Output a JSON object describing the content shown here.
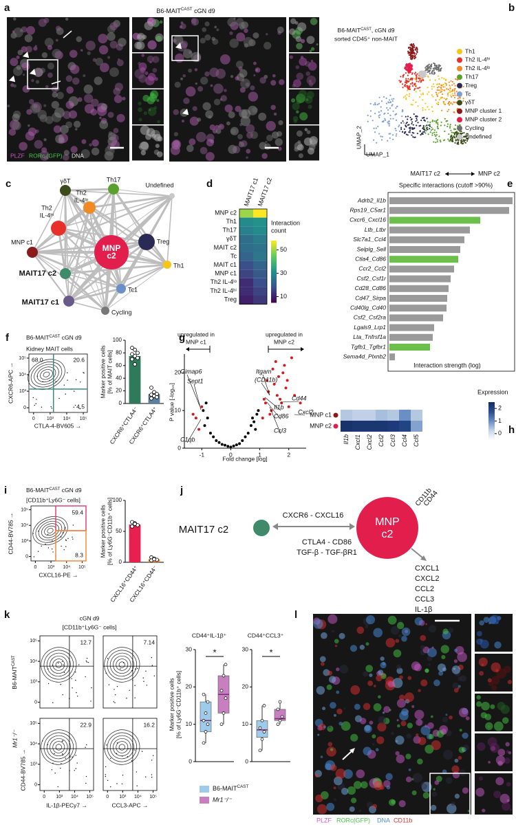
{
  "panel_labels": [
    "a",
    "b",
    "c",
    "d",
    "e",
    "f",
    "g",
    "h",
    "i",
    "j",
    "k",
    "l"
  ],
  "a": {
    "title": [
      "B6-MAIT",
      {
        "sup": "CAST"
      },
      " cGN d9"
    ],
    "legend": [
      "PLZF",
      "RORc (GFP)",
      "DNA"
    ],
    "legend_colors": [
      "#c85ac8",
      "#46c846",
      "#e6e6e6"
    ]
  },
  "b": {
    "title": [
      "B6-MAIT",
      {
        "sup": "CAST"
      },
      ", cGN d9"
    ],
    "subtitle": "sorted CD45⁺ non-MAIT",
    "x_label": "UMAP_1",
    "y_label": "UMAP_2",
    "clusters": [
      {
        "name": "Th1",
        "color": "#f5c518"
      },
      {
        "name": "Th2 IL-4ʰⁱ",
        "color": "#e8302a"
      },
      {
        "name": "Th2 IL-4ˡᵒ",
        "color": "#f08a24"
      },
      {
        "name": "Th17",
        "color": "#5aa02c"
      },
      {
        "name": "Treg",
        "color": "#2a2a55"
      },
      {
        "name": "Tc",
        "color": "#7f9fcf"
      },
      {
        "name": "γδT",
        "color": "#3d4a1c"
      },
      {
        "name": "MNP cluster 1",
        "color": "#8b1a1a"
      },
      {
        "name": "MNP cluster 2",
        "color": "#e21e4c"
      },
      {
        "name": "Cycling",
        "color": "#6e6e6e"
      },
      {
        "name": "Undefined",
        "color": "#c8c8c8"
      }
    ]
  },
  "c": {
    "nodes": [
      {
        "label": [
          "γδT"
        ],
        "color": "#3d4a1c"
      },
      {
        "label": [
          "Th17"
        ],
        "color": "#5aa02c"
      },
      {
        "label": [
          "Th2",
          "IL-4ˡᵒ"
        ],
        "color": "#f08a24"
      },
      {
        "label": [
          "Undefined"
        ],
        "color": "#c8c8c8"
      },
      {
        "label": [
          "Th2",
          "IL-4ʰⁱ"
        ],
        "color": "#e8302a"
      },
      {
        "label": [
          "MNP",
          "c2"
        ],
        "color": "#e21e4c"
      },
      {
        "label": [
          "Treg"
        ],
        "color": "#2a2a55"
      },
      {
        "label": [
          "MNP c1"
        ],
        "color": "#8b1a1a"
      },
      {
        "label": [
          "Th1"
        ],
        "color": "#f5c518"
      },
      {
        "label": [
          "MAIT17 c2"
        ],
        "color": "#3e8a6a"
      },
      {
        "label": [
          "Tc1"
        ],
        "color": "#6b8fc9"
      },
      {
        "label": [
          "MAIT17 c1"
        ],
        "color": "#6a5a8a"
      },
      {
        "label": [
          "Cycling"
        ],
        "color": "#777777"
      }
    ]
  },
  "d": {
    "chart_data": {
      "type": "heatmap",
      "columns": [
        "MAIT17 c1",
        "MAIT17 c2"
      ],
      "rows": [
        "MNP c2",
        "Th1",
        "Th17",
        "γδT",
        "MAIT c2",
        "Tc",
        "MAIT c1",
        "MNP c1",
        "Th2 IL-4ˡᵒ",
        "Th2 IL-4ʰⁱ",
        "Treg"
      ],
      "values": [
        [
          50,
          58
        ],
        [
          30,
          32
        ],
        [
          28,
          30
        ],
        [
          24,
          27
        ],
        [
          24,
          25
        ],
        [
          22,
          26
        ],
        [
          18,
          22
        ],
        [
          16,
          20
        ],
        [
          12,
          18
        ],
        [
          12,
          16
        ],
        [
          10,
          14
        ]
      ],
      "colorbar_title": [
        "Interaction",
        "count"
      ],
      "vlim": [
        5,
        58
      ],
      "ticks": [
        10,
        30,
        50
      ],
      "colormap": "viridis"
    }
  },
  "e": {
    "chart_data": {
      "type": "barh",
      "from": "MAIT17 c2",
      "to": "MNP c2",
      "subtitle": "Specific interactions (cutoff >90%)",
      "categories": [
        "Adrb2_Il1b",
        "Rps19_C5ar1",
        "Cxcr6_Cxcl16",
        "Ltb_Ltbr",
        "Slc7a1_Ccl4",
        "Selplg_Sell",
        "Ctla4_Cd86",
        "Ccr2_Ccl2",
        "Csf2_Csf1r",
        "Cd28_Cd86",
        "Cd47_Sirpa",
        "Cd40lg_Cd40",
        "Csf2_Csf2ra",
        "Lgals9_Lrp1",
        "Lta_Tnfrsf1a",
        "Tgfb1_Tgfbr1",
        "Sema4d_Plxnb2"
      ],
      "values": [
        179,
        174,
        132,
        117,
        109,
        103,
        100,
        94,
        89,
        86,
        84,
        83,
        78,
        65,
        63,
        59,
        8
      ],
      "colors": [
        "#9a9a9a",
        "#9a9a9a",
        "#6cbf4a",
        "#9a9a9a",
        "#9a9a9a",
        "#9a9a9a",
        "#6cbf4a",
        "#9a9a9a",
        "#9a9a9a",
        "#9a9a9a",
        "#9a9a9a",
        "#9a9a9a",
        "#9a9a9a",
        "#9a9a9a",
        "#9a9a9a",
        "#6cbf4a",
        "#9a9a9a"
      ],
      "x_label": "Interaction strength (log)"
    }
  },
  "f": {
    "title": [
      "B6-MAIT",
      {
        "sup": "CAST"
      },
      " cGN d9"
    ],
    "subtitle": "Kidney MAIT cells",
    "flow": {
      "x_label": "CTLA-4-BV605 →",
      "y_label": "CXCR6-APC →",
      "scale": "biexponential",
      "xlim": [
        0,
        100000
      ],
      "ylim": [
        0,
        100000
      ],
      "xticks": [
        0,
        {
          "value": 1000,
          "label": "10³"
        },
        {
          "value": 10000,
          "label": "10⁴"
        },
        {
          "value": 100000,
          "label": "10⁵"
        }
      ],
      "yticks": [
        0,
        {
          "value": 1000,
          "label": "10³"
        },
        {
          "value": 10000,
          "label": "10⁴"
        },
        {
          "value": 100000,
          "label": "10⁵"
        }
      ],
      "gate_labels": [
        "68.0",
        "20.6",
        "4.5"
      ],
      "gate_color": "#3a8a7a"
    },
    "chart_data": {
      "type": "bar",
      "categories": [
        "CXCR6⁺CTLA4⁻",
        "CXCR6⁺CTLA4⁺"
      ],
      "values": [
        75,
        15
      ],
      "colors": [
        "#2f7a5a",
        "#5b7f9f"
      ],
      "points": [
        [
          88,
          85,
          80,
          78,
          75,
          72,
          70,
          62
        ],
        [
          25,
          18,
          15,
          14,
          12,
          10,
          8
        ]
      ],
      "ylim": [
        0,
        100
      ],
      "yticks": [
        0,
        20,
        40,
        60,
        80,
        100
      ],
      "y_label": [
        "Marker positive cells",
        "[% of MAIT cells]"
      ]
    }
  },
  "g": {
    "chart_data": {
      "type": "scatter",
      "left_note": [
        "upregulated in",
        "MNP c1"
      ],
      "right_note": [
        "upregulated in",
        "MNP c2"
      ],
      "x_label": "Fold change [log]",
      "y_label": "P value [-log₁₀]",
      "xlim": [
        -1.6,
        2.6
      ],
      "ylim": [
        0,
        25
      ],
      "xticks": [
        -1,
        0,
        1,
        2
      ],
      "yticks": [
        0,
        10,
        20
      ],
      "series": [
        {
          "color": "#000000",
          "x": [
            -0.9,
            -0.8,
            -0.7,
            -0.6,
            -0.5,
            -0.4,
            -0.3,
            -0.2,
            -0.1,
            0,
            0.1,
            0.2,
            0.3,
            0.4,
            0.5,
            0.6,
            0.7,
            0.8,
            0.9,
            0.95,
            -0.85,
            -0.95,
            0.85,
            0.75
          ],
          "y": [
            6,
            8,
            4,
            3,
            2,
            1.5,
            1,
            0.8,
            0.5,
            0.3,
            0.6,
            0.9,
            1.2,
            2,
            3,
            4,
            6,
            7,
            9,
            10,
            12,
            10,
            5,
            8
          ]
        },
        {
          "color": "#d7191c",
          "x": [
            1.1,
            1.2,
            1.3,
            1.4,
            1.5,
            1.6,
            1.7,
            1.8,
            1.9,
            2.0,
            2.1,
            1.25,
            1.45,
            1.65,
            1.85,
            2.2,
            1.35,
            1.55,
            1.75,
            2.4,
            1.15,
            1.95,
            -1.1,
            -1.2,
            -1.0,
            -1.3
          ],
          "y": [
            8,
            12,
            15,
            10,
            17,
            14,
            13,
            20,
            16,
            11,
            24,
            18,
            21,
            19,
            22,
            14,
            9,
            23,
            12,
            12,
            13,
            18,
            5,
            8,
            11,
            9
          ]
        }
      ],
      "gene_labels": [
        "Gimap6",
        "Sept1",
        "C1qb",
        "Itgam",
        "(CD11b)",
        "Il1b",
        "Cd44",
        "Cd86",
        "Ccl3",
        "Cxcl2"
      ]
    }
  },
  "h": {
    "chart_data": {
      "type": "heatmap",
      "rows": [
        "MNP c1",
        "MNP c2"
      ],
      "row_colors": [
        "#8b1a1a",
        "#e21e4c"
      ],
      "columns": [
        "Il1b",
        "Cxcl1",
        "Cxcl2",
        "Ccl2",
        "Ccl3",
        "Ccl4",
        "Ccl5"
      ],
      "values": [
        [
          0.4,
          0.3,
          0.3,
          0.5,
          0.4,
          1.0,
          0.4
        ],
        [
          2.4,
          2.3,
          2.3,
          2.3,
          2.2,
          2.0,
          0.8
        ]
      ],
      "colorbar_title": "Expression",
      "vlim": [
        -0.5,
        2.5
      ],
      "ticks": [
        0,
        1,
        2
      ],
      "colormap": "blues"
    }
  },
  "i": {
    "title": [
      "B6-MAIT",
      {
        "sup": "CAST"
      },
      " cGN d9"
    ],
    "subtitle": "[CD11b⁺Ly6G⁻ cells]",
    "flow": {
      "x_label": "CXCL16-PE →",
      "y_label": "CD44-BV785 →",
      "scale": "biexponential",
      "xlim": [
        0,
        100000
      ],
      "ylim": [
        0,
        100000
      ],
      "xticks": [
        0,
        {
          "value": 1000,
          "label": "10³"
        },
        {
          "value": 10000,
          "label": "10⁴"
        },
        {
          "value": 100000,
          "label": "10⁵"
        }
      ],
      "yticks": [
        0,
        {
          "value": 1000,
          "label": "10³"
        },
        {
          "value": 10000,
          "label": "10⁴"
        },
        {
          "value": 100000,
          "label": "10⁵"
        }
      ],
      "gate_labels": [
        "59.4",
        "8.3"
      ],
      "gate_colors": [
        "#e0407a",
        "#f08a3c"
      ]
    },
    "chart_data": {
      "type": "bar",
      "categories": [
        "CXCL16⁺CD44⁺",
        "CXCL16⁺CD44⁻"
      ],
      "values": [
        61,
        5
      ],
      "colors": [
        "#e8204e",
        "#f08a3c"
      ],
      "points": [
        [
          65,
          63,
          60,
          58,
          62
        ],
        [
          8,
          6,
          4,
          3,
          5
        ]
      ],
      "ylim": [
        0,
        100
      ],
      "yticks": [
        0,
        50,
        100
      ],
      "y_label": [
        "Marker positive cells",
        "[% of Ly6G⁻CD11b⁺ cells]"
      ]
    }
  },
  "j": {
    "left": "MAIT17 c2",
    "right": [
      "MNP",
      "c2"
    ],
    "right_markers": [
      "CD11b",
      "CD44"
    ],
    "top_interaction": "CXCR6 - CXCL16",
    "bottom_interactions": [
      "CTLA4 - CD86",
      "TGF-β - TGF-βR1"
    ],
    "outputs": [
      "CXCL1",
      "CXCL2",
      "CCL2",
      "CCL3",
      "IL-1β"
    ]
  },
  "k": {
    "title": "cGN d9",
    "subtitle": "[CD11b⁺Ly6G⁻ cells]",
    "row_labels": [
      [
        "B6-MAIT",
        {
          "sup": "CAST"
        }
      ],
      "Mr1⁻/⁻"
    ],
    "y_label": "CD44-BV785 →",
    "x_labels": [
      "IL-1β-PECy7 →",
      "CCL3-APC →"
    ],
    "flow_scale": "biexponential",
    "flow_lim": [
      0,
      100000
    ],
    "flow_ticks": [
      0,
      {
        "value": 1000,
        "label": "10³"
      },
      {
        "value": 10000,
        "label": "10⁴"
      },
      {
        "value": 100000,
        "label": "10⁵"
      }
    ],
    "gate_labels": [
      "12.7",
      "7.14",
      "22.9",
      "16.2"
    ],
    "chart_data": {
      "type": "box",
      "y_label": [
        "Marker positive cells",
        "[% of Ly6G⁻CD11b⁺ cells]"
      ],
      "ylim": [
        0,
        30
      ],
      "yticks": [
        0,
        10,
        20,
        30
      ],
      "series": [
        {
          "name": [
            "B6-MAIT",
            {
              "sup": "CAST"
            }
          ],
          "color": "#9ecbe9"
        },
        {
          "name": "Mr1⁻/⁻",
          "color": "#c77fbf"
        }
      ],
      "panels": [
        {
          "title": "CD44⁺IL-1β⁺",
          "significance": "*",
          "boxes": [
            {
              "min": 5,
              "q1": 8,
              "median": 11,
              "q3": 16,
              "max": 18,
              "points": [
                5,
                8,
                10,
                11,
                13,
                16,
                18
              ]
            },
            {
              "min": 10,
              "q1": 13,
              "median": 18,
              "q3": 23,
              "max": 26,
              "points": [
                10,
                13,
                17,
                19,
                23,
                26
              ]
            }
          ]
        },
        {
          "title": "CD44⁺CCL3⁺",
          "significance": "*",
          "boxes": [
            {
              "min": 3,
              "q1": 6.5,
              "median": 8.5,
              "q3": 11,
              "max": 15,
              "points": [
                3,
                6,
                8,
                9,
                11,
                15
              ]
            },
            {
              "min": 10,
              "q1": 11,
              "median": 11.5,
              "q3": 14,
              "max": 16,
              "points": [
                10,
                11,
                12,
                14,
                16
              ]
            }
          ]
        }
      ]
    }
  },
  "l": {
    "legend": [
      "PLZF",
      "RORc(GFP)",
      "DNA",
      "CD11b"
    ],
    "legend_colors": [
      "#c85ac8",
      "#46c846",
      "#4a8fe0",
      "#e03030"
    ]
  }
}
